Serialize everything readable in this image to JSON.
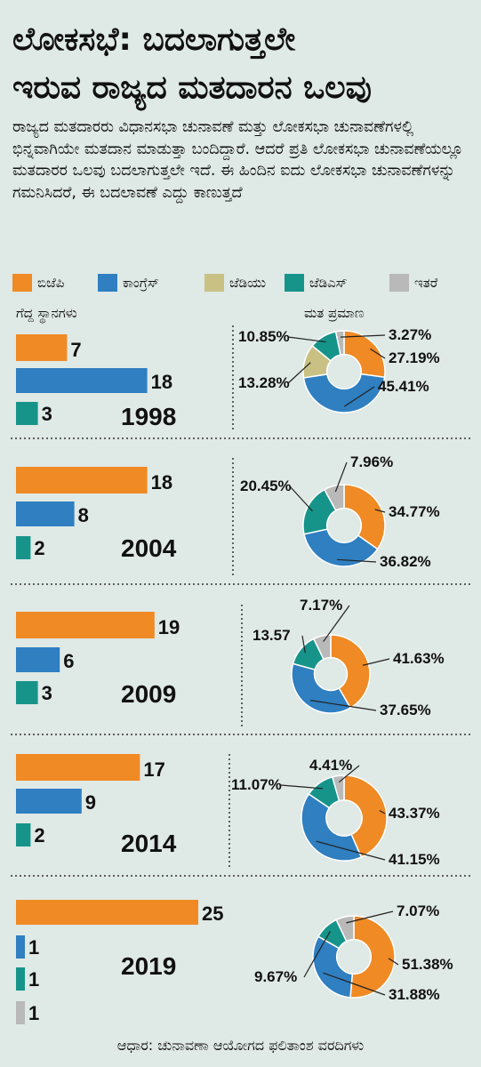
{
  "title_line1": "ಲೋಕಸಭೆ: ಬದಲಾಗುತ್ತಲೇ",
  "title_line2": "ಇರುವ ರಾಜ್ಯದ ಮತದಾರನ ಒಲವು",
  "intro": "ರಾಜ್ಯದ ಮತದಾರರು ವಿಧಾನಸಭಾ ಚುನಾವಣೆ ಮತ್ತು ಲೋಕಸಭಾ ಚುನಾವಣೆಗಳಲ್ಲಿ ಭಿನ್ನವಾಗಿಯೇ ಮತದಾನ ಮಾಡುತ್ತಾ ಬಂದಿದ್ದಾರೆ. ಆದರೆ ಪ್ರತಿ ಲೋಕಸಭಾ ಚುನಾವಣೆಯಲ್ಲೂ ಮತದಾರರ ಒಲವು ಬದಲಾಗುತ್ತಲೇ ಇದೆ. ಈ ಹಿಂದಿನ ಐದು ಲೋಕಸಭಾ ಚುನಾವಣೆಗಳನ್ನು ಗಮನಿಸಿದರೆ, ಈ ಬದಲಾವಣೆ ಎದ್ದು ಕಾಣುತ್ತದೆ",
  "legend": [
    {
      "label": "ಬಿಜೆಪಿ",
      "color": "#f08a24"
    },
    {
      "label": "ಕಾಂಗ್ರೆಸ್",
      "color": "#2f7fc1"
    },
    {
      "label": "ಜೆಡಿಯು",
      "color": "#c9c184"
    },
    {
      "label": "ಜೆಡಿಎಸ್",
      "color": "#17948a"
    },
    {
      "label": "ಇತರೆ",
      "color": "#b9b9b9"
    }
  ],
  "seats_heading": "ಗೆದ್ದ ಸ್ಥಾನಗಳು",
  "vote_heading": "ಮತ ಪ್ರಮಾಣ",
  "source": "ಆಧಾರ: ಚುನಾವಣಾ ಆಯೋಗದ ಫಲಿತಾಂಶ ವರದಿಗಳು",
  "chart_data": {
    "type": "bar",
    "years": [
      {
        "year": "1998",
        "seats": [
          {
            "party": "ಬಿಜೆಪಿ",
            "value": 7,
            "color": "#f08a24"
          },
          {
            "party": "ಕಾಂಗ್ರೆಸ್",
            "value": 18,
            "color": "#2f7fc1"
          },
          {
            "party": "ಜೆಡಿಎಸ್",
            "value": 3,
            "color": "#17948a"
          }
        ],
        "vote_share": [
          {
            "party": "ಬಿಜೆಪಿ",
            "value": 27.19,
            "label": "27.19%",
            "color": "#f08a24"
          },
          {
            "party": "ಕಾಂಗ್ರೆಸ್",
            "value": 45.41,
            "label": "45.41%",
            "color": "#2f7fc1"
          },
          {
            "party": "ಜೆಡಿಯು",
            "value": 13.28,
            "label": "13.28%",
            "color": "#c9c184"
          },
          {
            "party": "ಜೆಡಿಎಸ್",
            "value": 10.85,
            "label": "10.85%",
            "color": "#17948a"
          },
          {
            "party": "ಇತರೆ",
            "value": 3.27,
            "label": "3.27%",
            "color": "#b9b9b9"
          }
        ]
      },
      {
        "year": "2004",
        "seats": [
          {
            "party": "ಬಿಜೆಪಿ",
            "value": 18,
            "color": "#f08a24"
          },
          {
            "party": "ಕಾಂಗ್ರೆಸ್",
            "value": 8,
            "color": "#2f7fc1"
          },
          {
            "party": "ಜೆಡಿಎಸ್",
            "value": 2,
            "color": "#17948a"
          }
        ],
        "vote_share": [
          {
            "party": "ಬಿಜೆಪಿ",
            "value": 34.77,
            "label": "34.77%",
            "color": "#f08a24"
          },
          {
            "party": "ಕಾಂಗ್ರೆಸ್",
            "value": 36.82,
            "label": "36.82%",
            "color": "#2f7fc1"
          },
          {
            "party": "ಜೆಡಿಎಸ್",
            "value": 20.45,
            "label": "20.45%",
            "color": "#17948a"
          },
          {
            "party": "ಇತರೆ",
            "value": 7.96,
            "label": "7.96%",
            "color": "#b9b9b9"
          }
        ]
      },
      {
        "year": "2009",
        "seats": [
          {
            "party": "ಬಿಜೆಪಿ",
            "value": 19,
            "color": "#f08a24"
          },
          {
            "party": "ಕಾಂಗ್ರೆಸ್",
            "value": 6,
            "color": "#2f7fc1"
          },
          {
            "party": "ಜೆಡಿಎಸ್",
            "value": 3,
            "color": "#17948a"
          }
        ],
        "vote_share": [
          {
            "party": "ಬಿಜೆಪಿ",
            "value": 41.63,
            "label": "41.63%",
            "color": "#f08a24"
          },
          {
            "party": "ಕಾಂಗ್ರೆಸ್",
            "value": 37.65,
            "label": "37.65%",
            "color": "#2f7fc1"
          },
          {
            "party": "ಜೆಡಿಎಸ್",
            "value": 13.57,
            "label": "13.57",
            "color": "#17948a"
          },
          {
            "party": "ಇತರೆ",
            "value": 7.17,
            "label": "7.17%",
            "color": "#b9b9b9"
          }
        ]
      },
      {
        "year": "2014",
        "seats": [
          {
            "party": "ಬಿಜೆಪಿ",
            "value": 17,
            "color": "#f08a24"
          },
          {
            "party": "ಕಾಂಗ್ರೆಸ್",
            "value": 9,
            "color": "#2f7fc1"
          },
          {
            "party": "ಜೆಡಿಎಸ್",
            "value": 2,
            "color": "#17948a"
          }
        ],
        "vote_share": [
          {
            "party": "ಬಿಜೆಪಿ",
            "value": 43.37,
            "label": "43.37%",
            "color": "#f08a24"
          },
          {
            "party": "ಕಾಂಗ್ರೆಸ್",
            "value": 41.15,
            "label": "41.15%",
            "color": "#2f7fc1"
          },
          {
            "party": "ಜೆಡಿಎಸ್",
            "value": 11.07,
            "label": "11.07%",
            "color": "#17948a"
          },
          {
            "party": "ಇತರೆ",
            "value": 4.41,
            "label": "4.41%",
            "color": "#b9b9b9"
          }
        ]
      },
      {
        "year": "2019",
        "seats": [
          {
            "party": "ಬಿಜೆಪಿ",
            "value": 25,
            "color": "#f08a24"
          },
          {
            "party": "ಕಾಂಗ್ರೆಸ್",
            "value": 1,
            "color": "#2f7fc1"
          },
          {
            "party": "ಜೆಡಿಎಸ್",
            "value": 1,
            "color": "#17948a"
          },
          {
            "party": "ಇತರೆ",
            "value": 1,
            "color": "#b9b9b9"
          }
        ],
        "vote_share": [
          {
            "party": "ಬಿಜೆಪಿ",
            "value": 51.38,
            "label": "51.38%",
            "color": "#f08a24"
          },
          {
            "party": "ಕಾಂಗ್ರೆಸ್",
            "value": 31.88,
            "label": "31.88%",
            "color": "#2f7fc1"
          },
          {
            "party": "ಜೆಡಿಎಸ್",
            "value": 9.67,
            "label": "9.67%",
            "color": "#17948a"
          },
          {
            "party": "ಇತರೆ",
            "value": 7.07,
            "label": "7.07%",
            "color": "#b9b9b9"
          }
        ]
      }
    ]
  }
}
